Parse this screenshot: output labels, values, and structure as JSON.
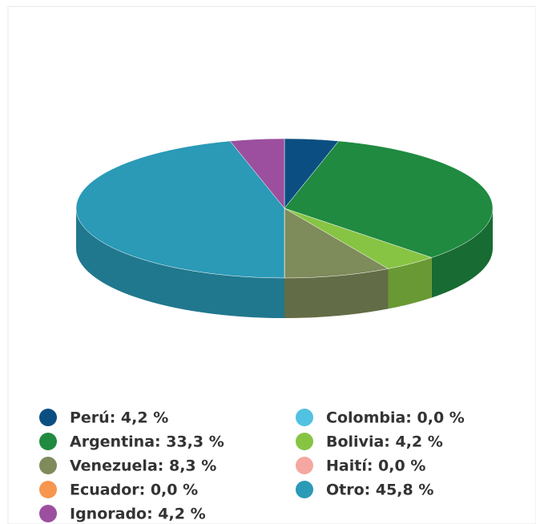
{
  "chart_data": {
    "type": "pie3d",
    "value_labels": [
      "Perú: 4,2 %",
      "Colombia: 0,0 %",
      "Argentina: 33,3 %",
      "Bolivia: 4,2 %",
      "Venezuela: 8,3 %",
      "Haití: 0,0 %",
      "Ecuador: 0,0 %",
      "Otro: 45,8 %",
      "Ignorado: 4,2 %"
    ],
    "values": [
      4.2,
      0.0,
      33.3,
      4.2,
      8.3,
      0.0,
      0.0,
      45.8,
      4.2
    ],
    "colors": [
      "#0b4f82",
      "#52c2e2",
      "#1f8a40",
      "#87c443",
      "#7e8b5a",
      "#f5a7a1",
      "#f7964f",
      "#2a9ab6",
      "#9c4f9f"
    ],
    "legend": "bottom"
  }
}
